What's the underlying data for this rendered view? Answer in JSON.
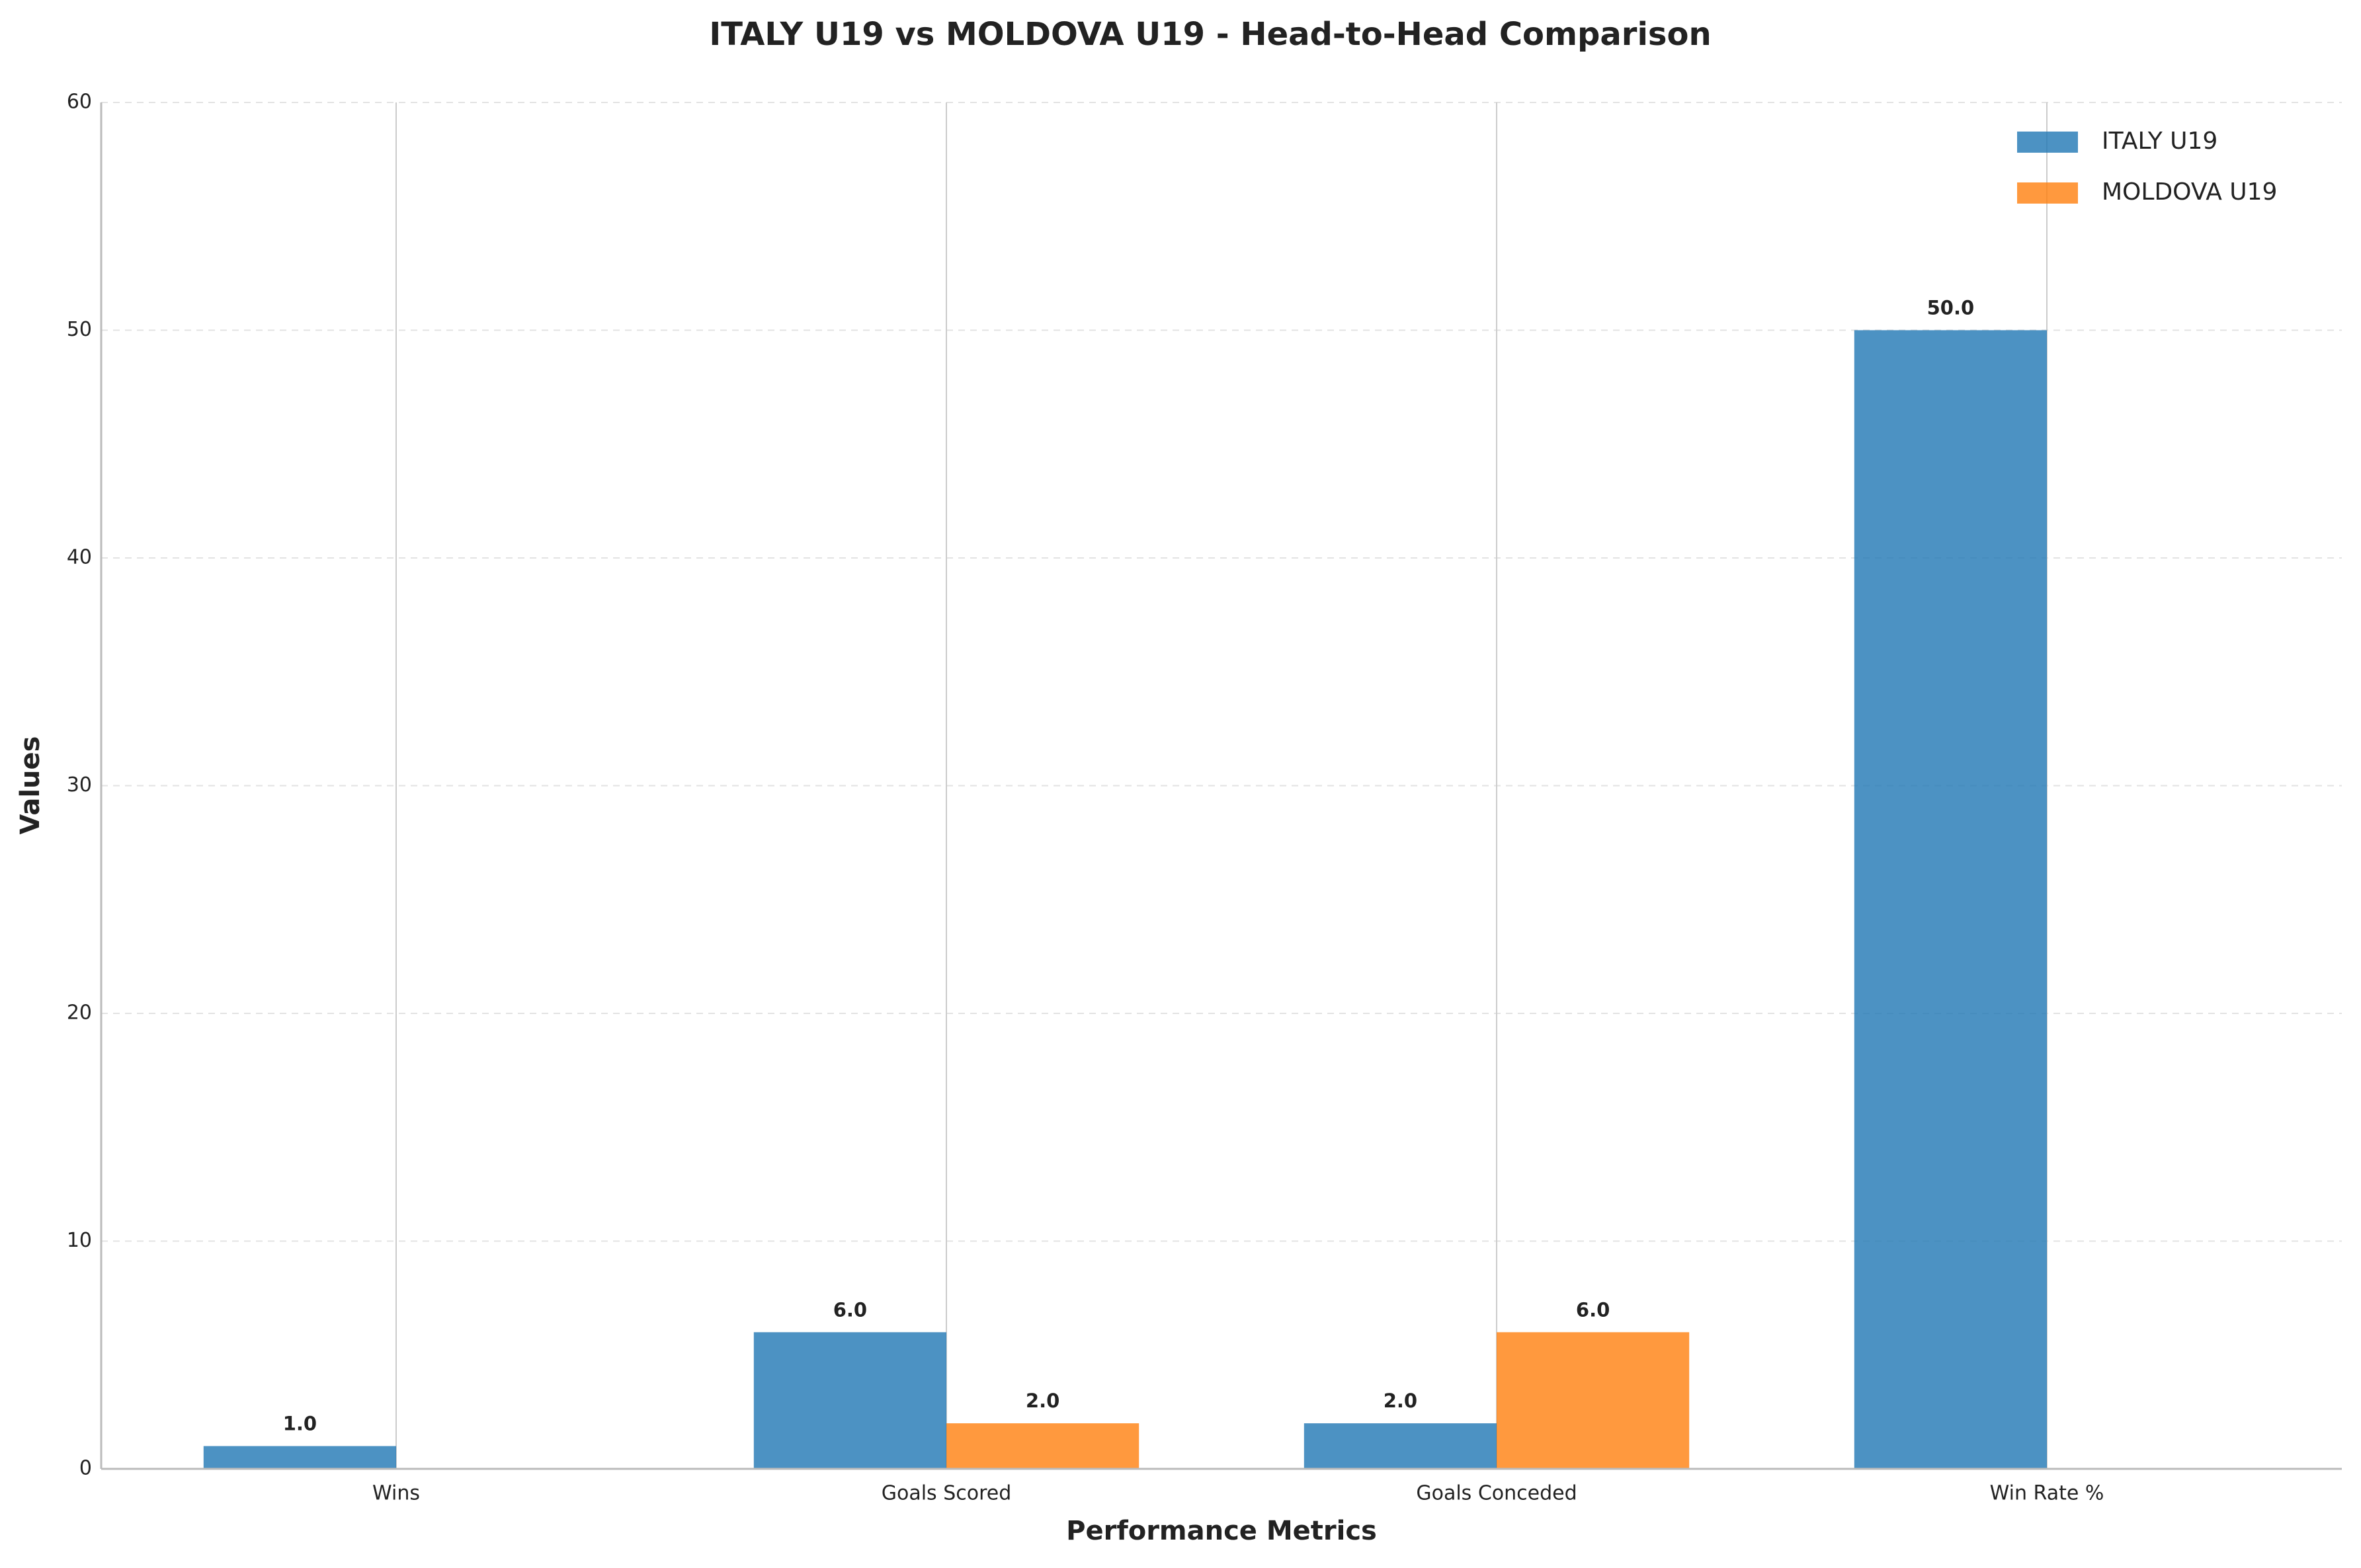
{
  "chart_data": {
    "type": "bar",
    "title": "ITALY U19 vs MOLDOVA U19 - Head-to-Head Comparison",
    "x_label": "Performance Metrics",
    "y_label": "Values",
    "categories": [
      "Wins",
      "Goals Scored",
      "Goals Conceded",
      "Win Rate %"
    ],
    "series": [
      {
        "name": "ITALY U19",
        "color": "#1f77b4",
        "values": [
          1,
          6,
          2,
          50
        ],
        "value_labels": [
          "1.0",
          "6.0",
          "2.0",
          "50.0"
        ]
      },
      {
        "name": "MOLDOVA U19",
        "color": "#ff7f0e",
        "values": [
          0,
          2,
          6,
          0
        ],
        "value_labels": [
          null,
          "2.0",
          "6.0",
          null
        ]
      }
    ],
    "ylim": [
      0,
      60
    ],
    "yticks": [
      0,
      10,
      20,
      30,
      40,
      50,
      60
    ],
    "grid": true,
    "legend": "upper right"
  }
}
